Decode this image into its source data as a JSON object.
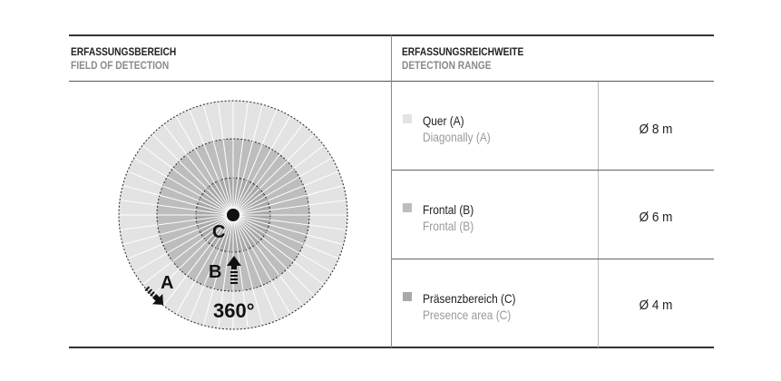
{
  "left_header": {
    "de": "ERFASSUNGSBEREICH",
    "en": "FIELD OF DETECTION"
  },
  "right_header": {
    "de": "ERFASSUNGSREICHWEITE",
    "en": "DETECTION RANGE"
  },
  "diagram": {
    "labels": {
      "a": "A",
      "b": "B",
      "c": "C",
      "angle": "360°"
    },
    "colors": {
      "a": "#e3e3e3",
      "b": "#bdbdbd",
      "c": "#a9a9a9"
    }
  },
  "rows": [
    {
      "de": "Quer (A)",
      "en": "Diagonally (A)",
      "value": "Ø 8 m",
      "color": "#e3e3e3"
    },
    {
      "de": "Frontal (B)",
      "en": "Frontal (B)",
      "value": "Ø 6 m",
      "color": "#bdbdbd"
    },
    {
      "de": "Präsenzbereich (C)",
      "en": "Presence area (C)",
      "value": "Ø 4 m",
      "color": "#a9a9a9"
    }
  ]
}
